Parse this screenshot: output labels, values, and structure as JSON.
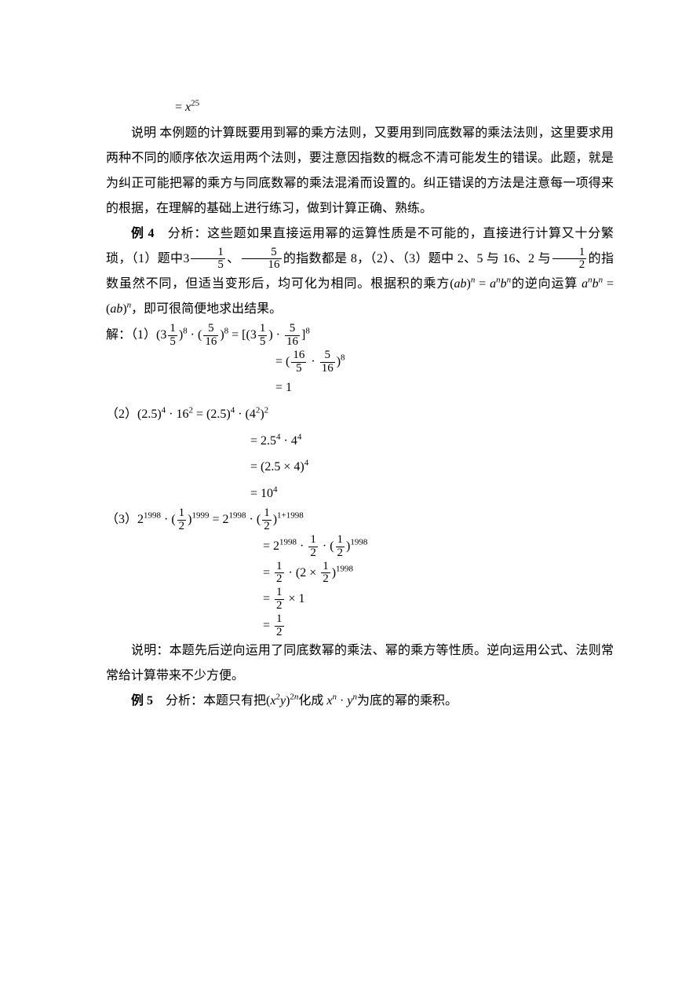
{
  "eq_top": "= x²⁵",
  "p1": "说明  本例题的计算既要用到幂的乘方法则，又要用到同底数幂的乘法法则，这里要求用两种不同的顺序依次运用两个法则，要注意因指数的概念不清可能发生的错误。此题，就是为纠正可能把幂的乘方与同底数幂的乘法混淆而设置的。纠正错误的方法是注意每一项得来的根据，在理解的基础上进行练习，做到计算正确、熟练。",
  "ex4_label": "例 4",
  "ex4_a": "　分析：这些题如果直接运用幂的运算性质是不可能的，直接进行计算又十分繁琐，（1）题中",
  "ex4_b": "、",
  "ex4_c": "的指数都是 8，（2）、（3）题中 2、5 与 16、2 与",
  "ex4_d": "的指数虽然不同，但适当变形后，均可化为相同。根据积的乘方",
  "ex4_e": "的逆向运算",
  "ex4_f": "，即可很简便地求出结果。",
  "solve": "解：（1）",
  "p2": "说明：本题先后逆向运用了同底数幂的乘法、幂的乘方等性质。逆向运用公式、法则常常给计算带来不少方便。",
  "ex5_label": "例 5",
  "ex5_a": "　分析：本题只有把",
  "ex5_b": "化成",
  "ex5_c": "为底的幂的乘积。"
}
